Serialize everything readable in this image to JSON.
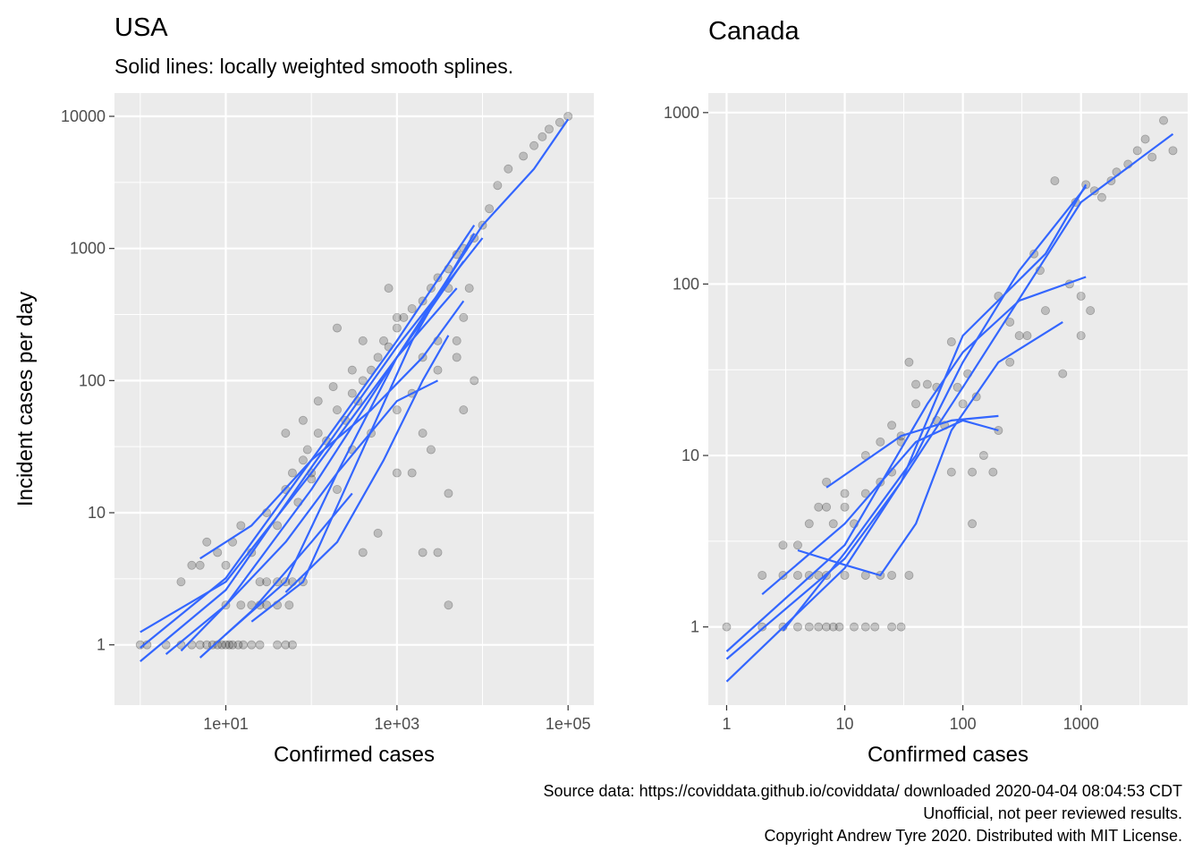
{
  "caption": {
    "line1": "Source data: https://coviddata.github.io/coviddata/ downloaded  2020-04-04 08:04:53 CDT",
    "line2": "Unofficial, not peer reviewed results.",
    "line3": "Copyright Andrew Tyre 2020. Distributed with MIT License."
  },
  "colors": {
    "panel_bg": "#ebebeb",
    "grid": "#ffffff",
    "points": "#000000",
    "smooth": "#3366ff"
  },
  "chart_data": [
    {
      "type": "scatter",
      "title": "USA",
      "subtitle": "Solid lines: locally weighted smooth splines.",
      "xlabel": "Confirmed cases",
      "ylabel": "Incident cases per day",
      "x_scale": "log10",
      "y_scale": "log10",
      "xlim": [
        0.5,
        200000
      ],
      "ylim": [
        0.35,
        15000
      ],
      "x_ticks": [
        10,
        1000,
        100000
      ],
      "x_tick_labels": [
        "1e+01",
        "1e+03",
        "1e+05"
      ],
      "y_ticks": [
        1,
        10,
        100,
        1000,
        10000
      ],
      "y_tick_labels": [
        "1",
        "10",
        "100",
        "1000",
        "10000"
      ],
      "grid": true,
      "points": [
        [
          1,
          1
        ],
        [
          1.2,
          1
        ],
        [
          2,
          1
        ],
        [
          3,
          1
        ],
        [
          4,
          1
        ],
        [
          5,
          1
        ],
        [
          6,
          1
        ],
        [
          7,
          1
        ],
        [
          8,
          1
        ],
        [
          9,
          1
        ],
        [
          10,
          1
        ],
        [
          11,
          1
        ],
        [
          12,
          1
        ],
        [
          14,
          1
        ],
        [
          16,
          1
        ],
        [
          20,
          1
        ],
        [
          25,
          1
        ],
        [
          40,
          1
        ],
        [
          50,
          1
        ],
        [
          60,
          1
        ],
        [
          3,
          3
        ],
        [
          4,
          4
        ],
        [
          5,
          4
        ],
        [
          6,
          6
        ],
        [
          8,
          5
        ],
        [
          10,
          4
        ],
        [
          12,
          6
        ],
        [
          15,
          8
        ],
        [
          20,
          5
        ],
        [
          25,
          3
        ],
        [
          30,
          3
        ],
        [
          40,
          3
        ],
        [
          50,
          3
        ],
        [
          60,
          3
        ],
        [
          80,
          3
        ],
        [
          10,
          2
        ],
        [
          15,
          2
        ],
        [
          20,
          2
        ],
        [
          25,
          2
        ],
        [
          30,
          2
        ],
        [
          40,
          2
        ],
        [
          55,
          2
        ],
        [
          4000,
          2
        ],
        [
          30,
          10
        ],
        [
          40,
          8
        ],
        [
          50,
          15
        ],
        [
          60,
          20
        ],
        [
          70,
          12
        ],
        [
          80,
          25
        ],
        [
          90,
          30
        ],
        [
          100,
          18
        ],
        [
          120,
          40
        ],
        [
          150,
          35
        ],
        [
          200,
          60
        ],
        [
          250,
          50
        ],
        [
          300,
          80
        ],
        [
          350,
          70
        ],
        [
          400,
          100
        ],
        [
          500,
          120
        ],
        [
          600,
          150
        ],
        [
          700,
          200
        ],
        [
          800,
          180
        ],
        [
          1000,
          250
        ],
        [
          1200,
          300
        ],
        [
          1500,
          350
        ],
        [
          2000,
          400
        ],
        [
          2500,
          500
        ],
        [
          3000,
          600
        ],
        [
          4000,
          700
        ],
        [
          5000,
          900
        ],
        [
          6000,
          1000
        ],
        [
          8000,
          1200
        ],
        [
          10000,
          1500
        ],
        [
          12000,
          2000
        ],
        [
          15000,
          3000
        ],
        [
          20000,
          4000
        ],
        [
          30000,
          5000
        ],
        [
          40000,
          6000
        ],
        [
          50000,
          7000
        ],
        [
          60000,
          8000
        ],
        [
          80000,
          9000
        ],
        [
          100000,
          10000
        ],
        [
          200,
          250
        ],
        [
          400,
          200
        ],
        [
          800,
          500
        ],
        [
          1000,
          300
        ],
        [
          2000,
          150
        ],
        [
          3000,
          120
        ],
        [
          4000,
          500
        ],
        [
          5000,
          150
        ],
        [
          6000,
          300
        ],
        [
          7000,
          500
        ],
        [
          100,
          20
        ],
        [
          200,
          15
        ],
        [
          300,
          30
        ],
        [
          500,
          40
        ],
        [
          1000,
          60
        ],
        [
          1500,
          80
        ],
        [
          2000,
          40
        ],
        [
          2500,
          30
        ],
        [
          3000,
          5
        ],
        [
          4000,
          14
        ],
        [
          5000,
          200
        ],
        [
          8000,
          100
        ],
        [
          50,
          40
        ],
        [
          80,
          50
        ],
        [
          120,
          70
        ],
        [
          180,
          90
        ],
        [
          300,
          120
        ],
        [
          400,
          5
        ],
        [
          600,
          7
        ],
        [
          1000,
          20
        ],
        [
          1500,
          20
        ],
        [
          2000,
          5
        ],
        [
          3000,
          200
        ],
        [
          6000,
          60
        ]
      ],
      "smooth_lines": [
        [
          [
            1,
            1.25
          ],
          [
            10,
            3
          ],
          [
            100,
            20
          ],
          [
            1000,
            150
          ],
          [
            10000,
            1500
          ],
          [
            40000,
            4000
          ],
          [
            100000,
            9500
          ]
        ],
        [
          [
            1,
            0.75
          ],
          [
            10,
            2.6
          ],
          [
            100,
            22
          ],
          [
            1000,
            180
          ],
          [
            10000,
            1200
          ]
        ],
        [
          [
            1,
            0.95
          ],
          [
            10,
            3.2
          ],
          [
            100,
            25
          ],
          [
            1000,
            200
          ],
          [
            8000,
            1500
          ]
        ],
        [
          [
            3,
            0.9
          ],
          [
            10,
            2
          ],
          [
            100,
            15
          ],
          [
            1000,
            150
          ],
          [
            6000,
            800
          ]
        ],
        [
          [
            5,
            4.5
          ],
          [
            20,
            8
          ],
          [
            100,
            25
          ],
          [
            500,
            60
          ],
          [
            2000,
            150
          ],
          [
            6000,
            400
          ]
        ],
        [
          [
            10,
            1.2
          ],
          [
            50,
            3
          ],
          [
            200,
            20
          ],
          [
            1000,
            150
          ],
          [
            5000,
            500
          ]
        ],
        [
          [
            20,
            1.5
          ],
          [
            80,
            3
          ],
          [
            300,
            20
          ],
          [
            1500,
            200
          ],
          [
            8000,
            1300
          ]
        ],
        [
          [
            5,
            0.8
          ],
          [
            20,
            1.8
          ],
          [
            100,
            6
          ],
          [
            300,
            14
          ]
        ],
        [
          [
            50,
            2.5
          ],
          [
            200,
            6
          ],
          [
            700,
            25
          ],
          [
            2000,
            100
          ],
          [
            4000,
            220
          ]
        ],
        [
          [
            2,
            0.85
          ],
          [
            10,
            2
          ],
          [
            50,
            6
          ],
          [
            200,
            20
          ],
          [
            1000,
            70
          ],
          [
            3000,
            100
          ]
        ]
      ]
    },
    {
      "type": "scatter",
      "title": "Canada",
      "xlabel": "Confirmed cases",
      "x_scale": "log10",
      "y_scale": "log10",
      "xlim": [
        0.7,
        8000
      ],
      "ylim": [
        0.35,
        1300
      ],
      "x_ticks": [
        1,
        10,
        100,
        1000
      ],
      "x_tick_labels": [
        "1",
        "10",
        "100",
        "1000"
      ],
      "y_ticks": [
        1,
        10,
        100,
        1000
      ],
      "y_tick_labels": [
        "1",
        "10",
        "100",
        "1000"
      ],
      "grid": true,
      "points": [
        [
          1,
          1
        ],
        [
          2,
          1
        ],
        [
          3,
          1
        ],
        [
          4,
          1
        ],
        [
          5,
          1
        ],
        [
          6,
          1
        ],
        [
          7,
          1
        ],
        [
          8,
          1
        ],
        [
          9,
          1
        ],
        [
          12,
          1
        ],
        [
          15,
          1
        ],
        [
          18,
          1
        ],
        [
          25,
          1
        ],
        [
          30,
          1
        ],
        [
          2,
          2
        ],
        [
          3,
          2
        ],
        [
          4,
          2
        ],
        [
          5,
          2
        ],
        [
          6,
          2
        ],
        [
          7,
          2
        ],
        [
          10,
          2
        ],
        [
          15,
          2
        ],
        [
          20,
          2
        ],
        [
          25,
          2
        ],
        [
          35,
          2
        ],
        [
          3,
          3
        ],
        [
          4,
          3
        ],
        [
          5,
          4
        ],
        [
          6,
          5
        ],
        [
          7,
          5
        ],
        [
          8,
          4
        ],
        [
          10,
          5
        ],
        [
          15,
          6
        ],
        [
          20,
          7
        ],
        [
          25,
          8
        ],
        [
          7,
          7
        ],
        [
          10,
          6
        ],
        [
          12,
          4
        ],
        [
          15,
          10
        ],
        [
          20,
          12
        ],
        [
          25,
          15
        ],
        [
          30,
          12
        ],
        [
          35,
          35
        ],
        [
          40,
          20
        ],
        [
          50,
          26
        ],
        [
          60,
          25
        ],
        [
          70,
          15
        ],
        [
          80,
          46
        ],
        [
          90,
          25
        ],
        [
          100,
          20
        ],
        [
          110,
          30
        ],
        [
          120,
          8
        ],
        [
          130,
          22
        ],
        [
          150,
          10
        ],
        [
          180,
          8
        ],
        [
          200,
          85
        ],
        [
          250,
          60
        ],
        [
          300,
          50
        ],
        [
          350,
          50
        ],
        [
          400,
          150
        ],
        [
          450,
          120
        ],
        [
          500,
          70
        ],
        [
          600,
          400
        ],
        [
          700,
          30
        ],
        [
          800,
          100
        ],
        [
          900,
          300
        ],
        [
          1000,
          50
        ],
        [
          1100,
          380
        ],
        [
          1300,
          350
        ],
        [
          1500,
          320
        ],
        [
          1800,
          400
        ],
        [
          2000,
          450
        ],
        [
          2500,
          500
        ],
        [
          3000,
          600
        ],
        [
          3500,
          700
        ],
        [
          4000,
          550
        ],
        [
          5000,
          900
        ],
        [
          6000,
          600
        ],
        [
          120,
          4
        ],
        [
          80,
          8
        ],
        [
          60,
          16
        ],
        [
          40,
          26
        ],
        [
          30,
          13
        ],
        [
          200,
          14
        ],
        [
          250,
          35
        ],
        [
          1000,
          85
        ],
        [
          1200,
          70
        ]
      ],
      "smooth_lines": [
        [
          [
            1,
            0.48
          ],
          [
            10,
            2.2
          ],
          [
            100,
            25
          ],
          [
            1000,
            300
          ],
          [
            6000,
            750
          ]
        ],
        [
          [
            1,
            0.65
          ],
          [
            10,
            2.5
          ],
          [
            30,
            7
          ],
          [
            100,
            50
          ],
          [
            500,
            150
          ],
          [
            1100,
            380
          ]
        ],
        [
          [
            1,
            0.72
          ],
          [
            10,
            3
          ],
          [
            50,
            20
          ],
          [
            100,
            40
          ],
          [
            300,
            80
          ],
          [
            1100,
            110
          ]
        ],
        [
          [
            2,
            1.55
          ],
          [
            10,
            4
          ],
          [
            40,
            12
          ],
          [
            100,
            16
          ],
          [
            200,
            14
          ]
        ],
        [
          [
            7,
            6.5
          ],
          [
            30,
            13
          ],
          [
            80,
            16
          ],
          [
            200,
            17
          ]
        ],
        [
          [
            4,
            2.8
          ],
          [
            10,
            2.3
          ],
          [
            20,
            2
          ],
          [
            40,
            4
          ],
          [
            80,
            14
          ],
          [
            200,
            35
          ],
          [
            700,
            60
          ]
        ],
        [
          [
            3,
            0.95
          ],
          [
            10,
            2.7
          ],
          [
            40,
            10
          ],
          [
            100,
            35
          ],
          [
            300,
            120
          ],
          [
            1100,
            370
          ]
        ]
      ]
    }
  ]
}
